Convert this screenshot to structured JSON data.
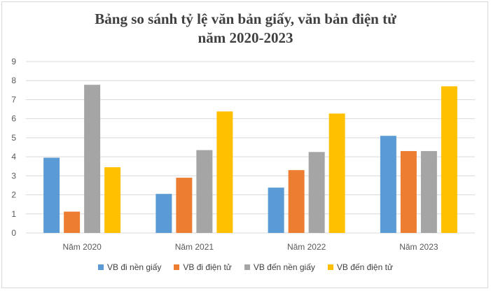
{
  "chart_data": {
    "type": "bar",
    "title_line1": "Bảng so sánh tỷ lệ văn bản giấy, văn bản điện tử",
    "title_line2": "năm 2020-2023",
    "categories": [
      "Năm 2020",
      "Năm 2021",
      "Năm 2022",
      "Năm 2023"
    ],
    "series": [
      {
        "name": "VB đi nền giấy",
        "color": "#5b9bd5",
        "values": [
          3.95,
          2.05,
          2.38,
          5.1
        ]
      },
      {
        "name": "VB đi điện tử",
        "color": "#ed7d31",
        "values": [
          1.12,
          2.9,
          3.3,
          4.3
        ]
      },
      {
        "name": "VB đến nền giấy",
        "color": "#a5a5a5",
        "values": [
          7.78,
          4.35,
          4.25,
          4.3
        ]
      },
      {
        "name": "VB đến điện tử",
        "color": "#ffc000",
        "values": [
          3.45,
          6.38,
          6.27,
          7.7
        ]
      }
    ],
    "ylim": [
      0,
      9
    ],
    "yticks": [
      "0",
      "1",
      "2",
      "3",
      "4",
      "5",
      "6",
      "7",
      "8",
      "9"
    ],
    "grid": true,
    "legend_position": "bottom"
  }
}
